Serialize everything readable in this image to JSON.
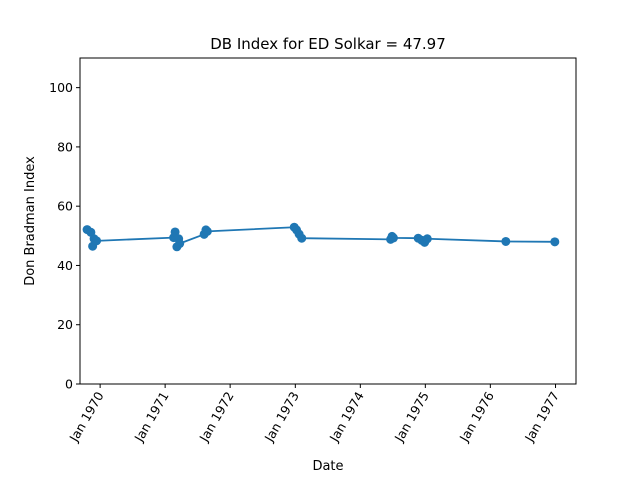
{
  "chart_data": {
    "type": "line",
    "title": "DB Index for ED Solkar = 47.97",
    "xlabel": "Date",
    "ylabel": "Don Bradman Index",
    "ylim": [
      0,
      110
    ],
    "yticks": [
      0,
      20,
      40,
      60,
      80,
      100
    ],
    "xlim": [
      "1969-09-10",
      "1977-04-26"
    ],
    "xticks": [
      "1970-01-01",
      "1971-01-01",
      "1972-01-01",
      "1973-01-01",
      "1974-01-01",
      "1975-01-01",
      "1976-01-01",
      "1977-01-01"
    ],
    "xtick_labels": [
      "Jan 1970",
      "Jan 1971",
      "Jan 1972",
      "Jan 1973",
      "Jan 1974",
      "Jan 1975",
      "Jan 1976",
      "Jan 1977"
    ],
    "grid": false,
    "marker": "circle",
    "color": "#1f77b4",
    "series": [
      {
        "points": [
          {
            "x": "1969-10-20",
            "y": 52.1
          },
          {
            "x": "1969-11-10",
            "y": 51.2
          },
          {
            "x": "1969-11-20",
            "y": 46.5
          },
          {
            "x": "1969-11-28",
            "y": 49.0
          },
          {
            "x": "1969-12-12",
            "y": 48.3
          },
          {
            "x": "1971-02-18",
            "y": 49.4
          },
          {
            "x": "1971-02-26",
            "y": 51.3
          },
          {
            "x": "1971-03-08",
            "y": 46.3
          },
          {
            "x": "1971-03-18",
            "y": 49.0
          },
          {
            "x": "1971-03-24",
            "y": 47.4
          },
          {
            "x": "1971-08-08",
            "y": 50.5
          },
          {
            "x": "1971-08-18",
            "y": 52.0
          },
          {
            "x": "1971-08-26",
            "y": 51.5
          },
          {
            "x": "1972-12-26",
            "y": 52.9
          },
          {
            "x": "1973-01-08",
            "y": 52.0
          },
          {
            "x": "1973-01-22",
            "y": 50.6
          },
          {
            "x": "1973-02-06",
            "y": 49.2
          },
          {
            "x": "1974-06-20",
            "y": 48.8
          },
          {
            "x": "1974-06-28",
            "y": 49.8
          },
          {
            "x": "1974-07-06",
            "y": 49.3
          },
          {
            "x": "1974-11-22",
            "y": 49.2
          },
          {
            "x": "1974-12-12",
            "y": 48.5
          },
          {
            "x": "1974-12-28",
            "y": 47.8
          },
          {
            "x": "1975-01-12",
            "y": 49.0
          },
          {
            "x": "1976-03-28",
            "y": 48.1
          },
          {
            "x": "1976-12-28",
            "y": 47.97
          }
        ]
      }
    ]
  }
}
